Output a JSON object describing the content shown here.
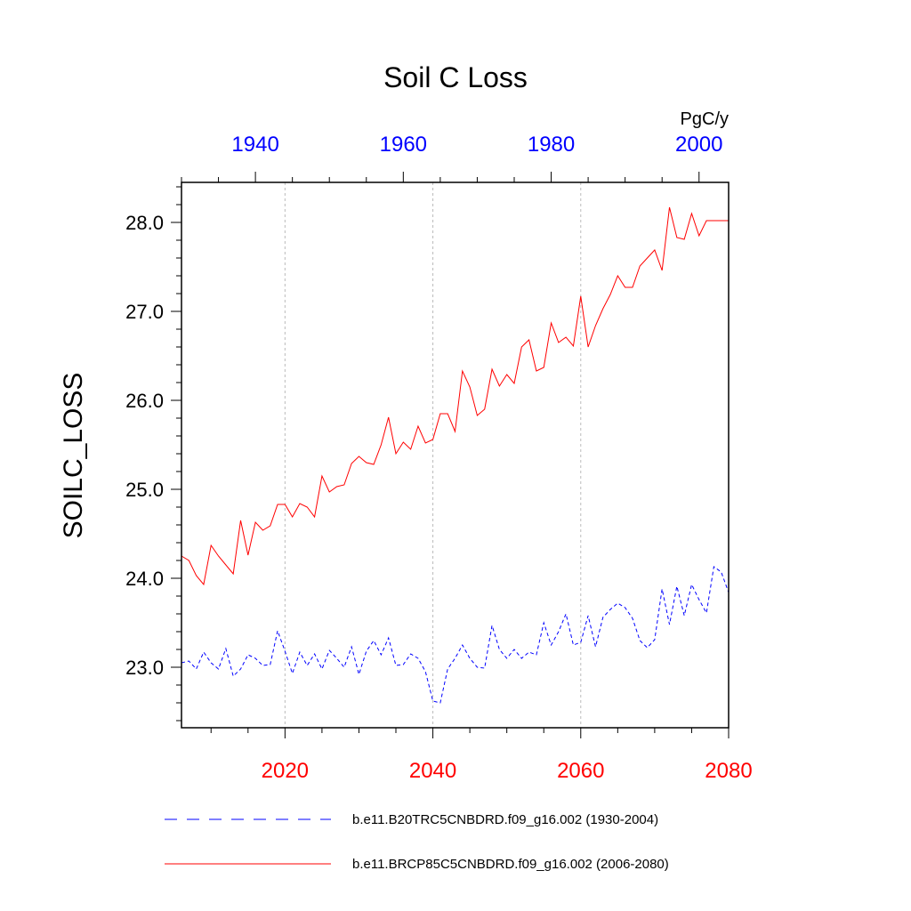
{
  "chart_data": {
    "type": "line",
    "title": "Soil C Loss",
    "ylabel": "SOILC_LOSS",
    "units": "PgC/y",
    "ylim": [
      22.32,
      28.45
    ],
    "y_ticks": [
      "23.0",
      "24.0",
      "25.0",
      "26.0",
      "27.0",
      "28.0"
    ],
    "x_bottom": {
      "range": [
        2006,
        2080
      ],
      "ticks": [
        "2020",
        "2040",
        "2060",
        "2080"
      ],
      "color": "#ff0000"
    },
    "x_top": {
      "range": [
        1930,
        2004
      ],
      "ticks": [
        "1940",
        "1960",
        "1980",
        "2000"
      ],
      "color": "#0000ff"
    },
    "grid": "vertical dashed lines at bottom-axis major ticks",
    "legend_position": "bottom",
    "series": [
      {
        "name": "b.e11.B20TRC5CNBDRD.f09_g16.002 (1930-2004)",
        "axis": "top",
        "color": "#0000ff",
        "dash": "dashed",
        "x": [
          1930,
          1931,
          1932,
          1933,
          1934,
          1935,
          1936,
          1937,
          1938,
          1939,
          1940,
          1941,
          1942,
          1943,
          1944,
          1945,
          1946,
          1947,
          1948,
          1949,
          1950,
          1951,
          1952,
          1953,
          1954,
          1955,
          1956,
          1957,
          1958,
          1959,
          1960,
          1961,
          1962,
          1963,
          1964,
          1965,
          1966,
          1967,
          1968,
          1969,
          1970,
          1971,
          1972,
          1973,
          1974,
          1975,
          1976,
          1977,
          1978,
          1979,
          1980,
          1981,
          1982,
          1983,
          1984,
          1985,
          1986,
          1987,
          1988,
          1989,
          1990,
          1991,
          1992,
          1993,
          1994,
          1995,
          1996,
          1997,
          1998,
          1999,
          2000,
          2001,
          2002,
          2003,
          2004
        ],
        "values": [
          23.05,
          23.07,
          22.98,
          23.17,
          23.05,
          22.98,
          23.21,
          22.9,
          22.98,
          23.14,
          23.1,
          23.02,
          23.03,
          23.41,
          23.18,
          22.93,
          23.17,
          23.02,
          23.15,
          22.98,
          23.19,
          23.1,
          23.0,
          23.23,
          22.92,
          23.18,
          23.3,
          23.14,
          23.33,
          23.02,
          23.03,
          23.15,
          23.1,
          22.95,
          22.62,
          22.6,
          22.98,
          23.1,
          23.25,
          23.1,
          23.0,
          22.99,
          23.47,
          23.2,
          23.1,
          23.2,
          23.1,
          23.17,
          23.14,
          23.5,
          23.25,
          23.4,
          23.6,
          23.25,
          23.28,
          23.58,
          23.23,
          23.56,
          23.65,
          23.72,
          23.67,
          23.55,
          23.3,
          23.22,
          23.31,
          23.88,
          23.48,
          23.91,
          23.58,
          23.93,
          23.76,
          23.61,
          24.13,
          24.07,
          23.84
        ]
      },
      {
        "name": "b.e11.BRCP85C5CNBDRD.f09_g16.002 (2006-2080)",
        "axis": "bottom",
        "color": "#ff0000",
        "dash": "solid",
        "x": [
          2006,
          2007,
          2008,
          2009,
          2010,
          2011,
          2012,
          2013,
          2014,
          2015,
          2016,
          2017,
          2018,
          2019,
          2020,
          2021,
          2022,
          2023,
          2024,
          2025,
          2026,
          2027,
          2028,
          2029,
          2030,
          2031,
          2032,
          2033,
          2034,
          2035,
          2036,
          2037,
          2038,
          2039,
          2040,
          2041,
          2042,
          2043,
          2044,
          2045,
          2046,
          2047,
          2048,
          2049,
          2050,
          2051,
          2052,
          2053,
          2054,
          2055,
          2056,
          2057,
          2058,
          2059,
          2060,
          2061,
          2062,
          2063,
          2064,
          2065,
          2066,
          2067,
          2068,
          2069,
          2070,
          2071,
          2072,
          2073,
          2074,
          2075,
          2076,
          2077,
          2078,
          2079,
          2080
        ],
        "values": [
          24.25,
          24.2,
          24.03,
          23.93,
          24.37,
          24.25,
          24.15,
          24.05,
          24.65,
          24.26,
          24.63,
          24.54,
          24.59,
          24.83,
          24.83,
          24.69,
          24.84,
          24.8,
          24.69,
          25.15,
          24.97,
          25.03,
          25.05,
          25.29,
          25.37,
          25.3,
          25.28,
          25.5,
          25.81,
          25.4,
          25.53,
          25.45,
          25.71,
          25.52,
          25.56,
          25.85,
          25.85,
          25.65,
          26.33,
          26.15,
          25.83,
          25.9,
          26.35,
          26.16,
          26.29,
          26.19,
          26.6,
          26.68,
          26.33,
          26.37,
          26.87,
          26.65,
          26.71,
          26.61,
          27.17,
          26.6,
          26.84,
          27.03,
          27.19,
          27.4,
          27.27,
          27.27,
          27.51,
          27.6,
          27.69,
          27.46,
          28.17,
          27.83,
          27.81,
          28.1,
          27.85,
          28.02,
          28.02,
          28.02,
          28.02
        ]
      }
    ]
  }
}
